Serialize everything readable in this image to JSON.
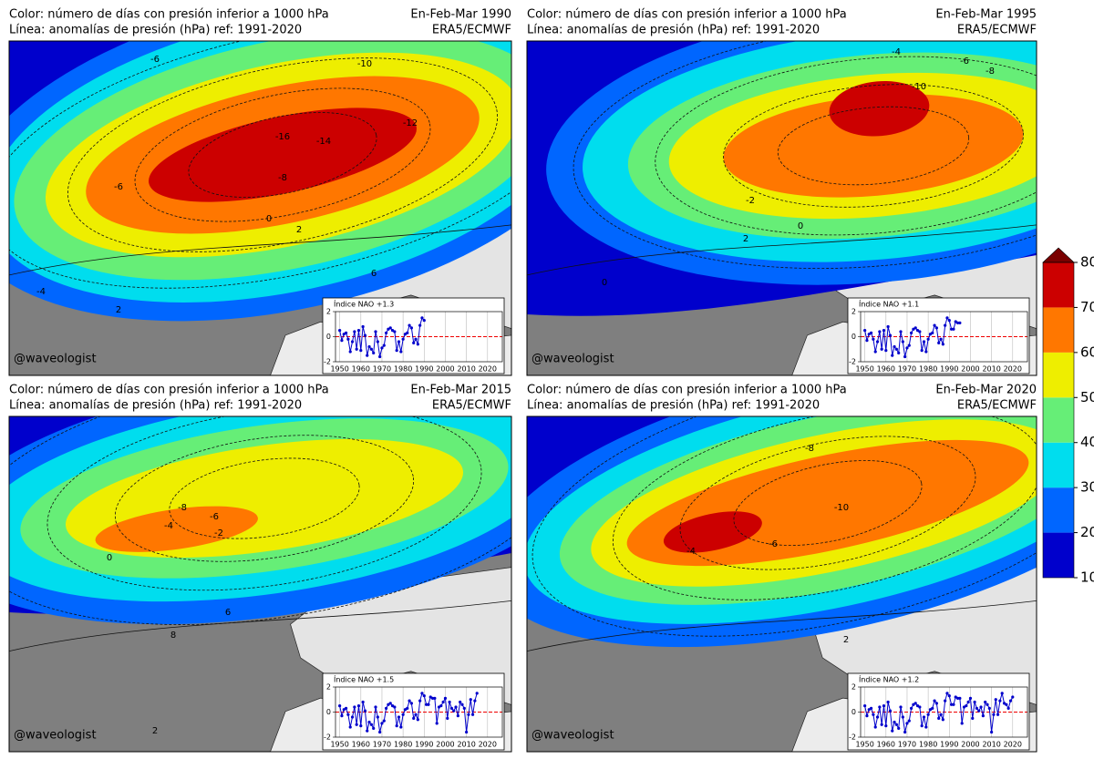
{
  "panels": [
    {
      "title_left": [
        "Color: número de días con presión inferior a 1000 hPa",
        "Línea: anomalías de presión (hPa) ref: 1991-2020"
      ],
      "title_right": [
        "En-Feb-Mar 1990",
        "ERA5/ECMWF"
      ],
      "credit": "@waveologist",
      "contour_labels": [
        -6,
        -10,
        -12,
        -16,
        -14,
        -8,
        -6,
        0,
        2,
        6,
        -4,
        2
      ],
      "inset": {
        "label": "Índice NAO +1.3",
        "xlim": [
          1948,
          2027
        ],
        "ylim": [
          -2,
          2
        ],
        "xticks": [
          1950,
          1960,
          1970,
          1980,
          1990,
          2000,
          2010,
          2020
        ],
        "yticks": [
          -2,
          0,
          2
        ],
        "x": [
          1950,
          1951,
          1952,
          1953,
          1954,
          1955,
          1956,
          1957,
          1958,
          1959,
          1960,
          1961,
          1962,
          1963,
          1964,
          1965,
          1966,
          1967,
          1968,
          1969,
          1970,
          1971,
          1972,
          1973,
          1974,
          1975,
          1976,
          1977,
          1978,
          1979,
          1980,
          1981,
          1982,
          1983,
          1984,
          1985,
          1986,
          1987,
          1988,
          1989,
          1990
        ],
        "values": [
          0.5,
          -0.3,
          0.2,
          0.3,
          -0.2,
          -1.2,
          -0.4,
          0.4,
          -1.0,
          0.5,
          -1.1,
          0.8,
          0.1,
          -1.5,
          -0.8,
          -1.0,
          -1.3,
          0.4,
          -0.4,
          -1.6,
          -0.9,
          -0.7,
          0.3,
          0.6,
          0.7,
          0.5,
          0.4,
          -1.1,
          -0.4,
          -1.2,
          -0.2,
          0.2,
          0.3,
          0.9,
          0.7,
          -0.5,
          -0.2,
          -0.6,
          0.9,
          1.5,
          1.3
        ]
      }
    },
    {
      "title_left": [
        "Color: número de días con presión inferior a 1000 hPa",
        "Línea: anomalías de presión (hPa) ref: 1991-2020"
      ],
      "title_right": [
        "En-Feb-Mar 1995",
        "ERA5/ECMWF"
      ],
      "credit": "@waveologist",
      "contour_labels": [
        -4,
        -6,
        -8,
        -10,
        -2,
        0,
        2,
        0
      ],
      "inset": {
        "label": "Índice NAO +1.1",
        "xlim": [
          1948,
          2027
        ],
        "ylim": [
          -2,
          2
        ],
        "xticks": [
          1950,
          1960,
          1970,
          1980,
          1990,
          2000,
          2010,
          2020
        ],
        "yticks": [
          -2,
          0,
          2
        ],
        "x": [
          1950,
          1951,
          1952,
          1953,
          1954,
          1955,
          1956,
          1957,
          1958,
          1959,
          1960,
          1961,
          1962,
          1963,
          1964,
          1965,
          1966,
          1967,
          1968,
          1969,
          1970,
          1971,
          1972,
          1973,
          1974,
          1975,
          1976,
          1977,
          1978,
          1979,
          1980,
          1981,
          1982,
          1983,
          1984,
          1985,
          1986,
          1987,
          1988,
          1989,
          1990,
          1991,
          1992,
          1993,
          1994,
          1995
        ],
        "values": [
          0.5,
          -0.3,
          0.2,
          0.3,
          -0.2,
          -1.2,
          -0.4,
          0.4,
          -1.0,
          0.5,
          -1.1,
          0.8,
          0.1,
          -1.5,
          -0.8,
          -1.0,
          -1.3,
          0.4,
          -0.4,
          -1.6,
          -0.9,
          -0.7,
          0.3,
          0.6,
          0.7,
          0.5,
          0.4,
          -1.1,
          -0.4,
          -1.2,
          -0.2,
          0.2,
          0.3,
          0.9,
          0.7,
          -0.5,
          -0.2,
          -0.6,
          0.9,
          1.5,
          1.3,
          0.6,
          0.6,
          1.2,
          1.1,
          1.1
        ]
      }
    },
    {
      "title_left": [
        "Color: número de días con presión inferior a 1000 hPa",
        "Línea: anomalías de presión (hPa) ref: 1991-2020"
      ],
      "title_right": [
        "En-Feb-Mar 2015",
        "ERA5/ECMWF"
      ],
      "credit": "@waveologist",
      "contour_labels": [
        -8,
        -6,
        -4,
        -2,
        0,
        6,
        8,
        2
      ],
      "inset": {
        "label": "Índice NAO +1.5",
        "xlim": [
          1948,
          2027
        ],
        "ylim": [
          -2,
          2
        ],
        "xticks": [
          1950,
          1960,
          1970,
          1980,
          1990,
          2000,
          2010,
          2020
        ],
        "yticks": [
          -2,
          0,
          2
        ],
        "x": [
          1950,
          1951,
          1952,
          1953,
          1954,
          1955,
          1956,
          1957,
          1958,
          1959,
          1960,
          1961,
          1962,
          1963,
          1964,
          1965,
          1966,
          1967,
          1968,
          1969,
          1970,
          1971,
          1972,
          1973,
          1974,
          1975,
          1976,
          1977,
          1978,
          1979,
          1980,
          1981,
          1982,
          1983,
          1984,
          1985,
          1986,
          1987,
          1988,
          1989,
          1990,
          1991,
          1992,
          1993,
          1994,
          1995,
          1996,
          1997,
          1998,
          1999,
          2000,
          2001,
          2002,
          2003,
          2004,
          2005,
          2006,
          2007,
          2008,
          2009,
          2010,
          2011,
          2012,
          2013,
          2014,
          2015
        ],
        "values": [
          0.5,
          -0.3,
          0.2,
          0.3,
          -0.2,
          -1.2,
          -0.4,
          0.4,
          -1.0,
          0.5,
          -1.1,
          0.8,
          0.1,
          -1.5,
          -0.8,
          -1.0,
          -1.3,
          0.4,
          -0.4,
          -1.6,
          -0.9,
          -0.7,
          0.3,
          0.6,
          0.7,
          0.5,
          0.4,
          -1.1,
          -0.4,
          -1.2,
          -0.2,
          0.2,
          0.3,
          0.9,
          0.7,
          -0.5,
          -0.2,
          -0.6,
          0.9,
          1.5,
          1.3,
          0.6,
          0.6,
          1.2,
          1.1,
          1.1,
          -0.9,
          0.4,
          0.5,
          0.8,
          1.1,
          -0.5,
          0.8,
          0.3,
          0.1,
          0.4,
          -0.3,
          0.8,
          0.6,
          0.3,
          -1.6,
          -0.2,
          1.0,
          -0.2,
          0.9,
          1.5
        ]
      }
    },
    {
      "title_left": [
        "Color: número de días con presión inferior a 1000 hPa",
        "Línea: anomalías de presión (hPa) ref: 1991-2020"
      ],
      "title_right": [
        "En-Feb-Mar 2020",
        "ERA5/ECMWF"
      ],
      "credit": "@waveologist",
      "contour_labels": [
        -8,
        -10,
        -6,
        -4,
        2
      ],
      "inset": {
        "label": "Índice NAO +1.2",
        "xlim": [
          1948,
          2027
        ],
        "ylim": [
          -2,
          2
        ],
        "xticks": [
          1950,
          1960,
          1970,
          1980,
          1990,
          2000,
          2010,
          2020
        ],
        "yticks": [
          -2,
          0,
          2
        ],
        "x": [
          1950,
          1951,
          1952,
          1953,
          1954,
          1955,
          1956,
          1957,
          1958,
          1959,
          1960,
          1961,
          1962,
          1963,
          1964,
          1965,
          1966,
          1967,
          1968,
          1969,
          1970,
          1971,
          1972,
          1973,
          1974,
          1975,
          1976,
          1977,
          1978,
          1979,
          1980,
          1981,
          1982,
          1983,
          1984,
          1985,
          1986,
          1987,
          1988,
          1989,
          1990,
          1991,
          1992,
          1993,
          1994,
          1995,
          1996,
          1997,
          1998,
          1999,
          2000,
          2001,
          2002,
          2003,
          2004,
          2005,
          2006,
          2007,
          2008,
          2009,
          2010,
          2011,
          2012,
          2013,
          2014,
          2015,
          2016,
          2017,
          2018,
          2019,
          2020
        ],
        "values": [
          0.5,
          -0.3,
          0.2,
          0.3,
          -0.2,
          -1.2,
          -0.4,
          0.4,
          -1.0,
          0.5,
          -1.1,
          0.8,
          0.1,
          -1.5,
          -0.8,
          -1.0,
          -1.3,
          0.4,
          -0.4,
          -1.6,
          -0.9,
          -0.7,
          0.3,
          0.6,
          0.7,
          0.5,
          0.4,
          -1.1,
          -0.4,
          -1.2,
          -0.2,
          0.2,
          0.3,
          0.9,
          0.7,
          -0.5,
          -0.2,
          -0.6,
          0.9,
          1.5,
          1.3,
          0.6,
          0.6,
          1.2,
          1.1,
          1.1,
          -0.9,
          0.4,
          0.5,
          0.8,
          1.1,
          -0.5,
          0.8,
          0.3,
          0.1,
          0.4,
          -0.3,
          0.8,
          0.6,
          0.3,
          -1.6,
          -0.2,
          1.0,
          -0.2,
          0.9,
          1.5,
          0.7,
          0.6,
          0.3,
          0.9,
          1.2
        ]
      }
    }
  ],
  "colorbar": {
    "ticks": [
      10,
      20,
      30,
      40,
      50,
      60,
      70,
      80
    ],
    "colors": [
      "#0000cc",
      "#0066ff",
      "#00ddee",
      "#66ee77",
      "#eeee00",
      "#ff7700",
      "#cc0000"
    ],
    "extend_color": "#7a0000"
  }
}
